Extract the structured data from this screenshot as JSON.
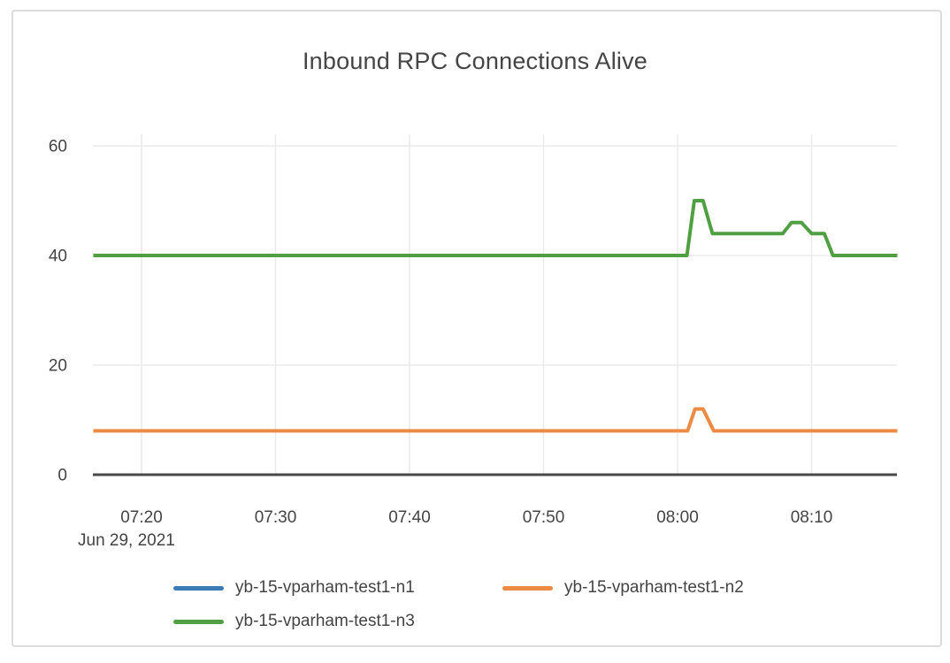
{
  "page": {
    "background": "#ffffff",
    "card_border_color": "#dcdcdc"
  },
  "chart_data": {
    "type": "line",
    "title": "Inbound RPC Connections Alive",
    "text_color": "#444444",
    "grid_color": "#eaeaea",
    "axis_line_color": "#484848",
    "grid": true,
    "legend_position": "bottom",
    "x_axis": {
      "date_label": "Jun 29, 2021",
      "ticks": [
        "07:20",
        "07:30",
        "07:40",
        "07:50",
        "08:00",
        "08:10"
      ],
      "range": [
        "07:16:24",
        "08:16:24"
      ]
    },
    "y_axis": {
      "ticks": [
        0,
        20,
        40,
        60
      ],
      "range": [
        0,
        62
      ]
    },
    "series": [
      {
        "name": "yb-15-vparham-test1-n1",
        "color": "#3d7bb5",
        "points": []
      },
      {
        "name": "yb-15-vparham-test1-n2",
        "color": "#ec8b43",
        "points": [
          [
            "07:16:24",
            8
          ],
          [
            "08:00:45",
            8
          ],
          [
            "08:01:18",
            12
          ],
          [
            "08:01:54",
            12
          ],
          [
            "08:02:42",
            8
          ],
          [
            "08:16:24",
            8
          ]
        ]
      },
      {
        "name": "yb-15-vparham-test1-n3",
        "color": "#519f43",
        "points": [
          [
            "07:16:24",
            40
          ],
          [
            "08:00:42",
            40
          ],
          [
            "08:01:15",
            50
          ],
          [
            "08:01:54",
            50
          ],
          [
            "08:02:36",
            44
          ],
          [
            "08:07:51",
            44
          ],
          [
            "08:08:30",
            46
          ],
          [
            "08:09:15",
            46
          ],
          [
            "08:10:00",
            44
          ],
          [
            "08:10:57",
            44
          ],
          [
            "08:11:36",
            40
          ],
          [
            "08:16:24",
            40
          ]
        ]
      }
    ]
  }
}
